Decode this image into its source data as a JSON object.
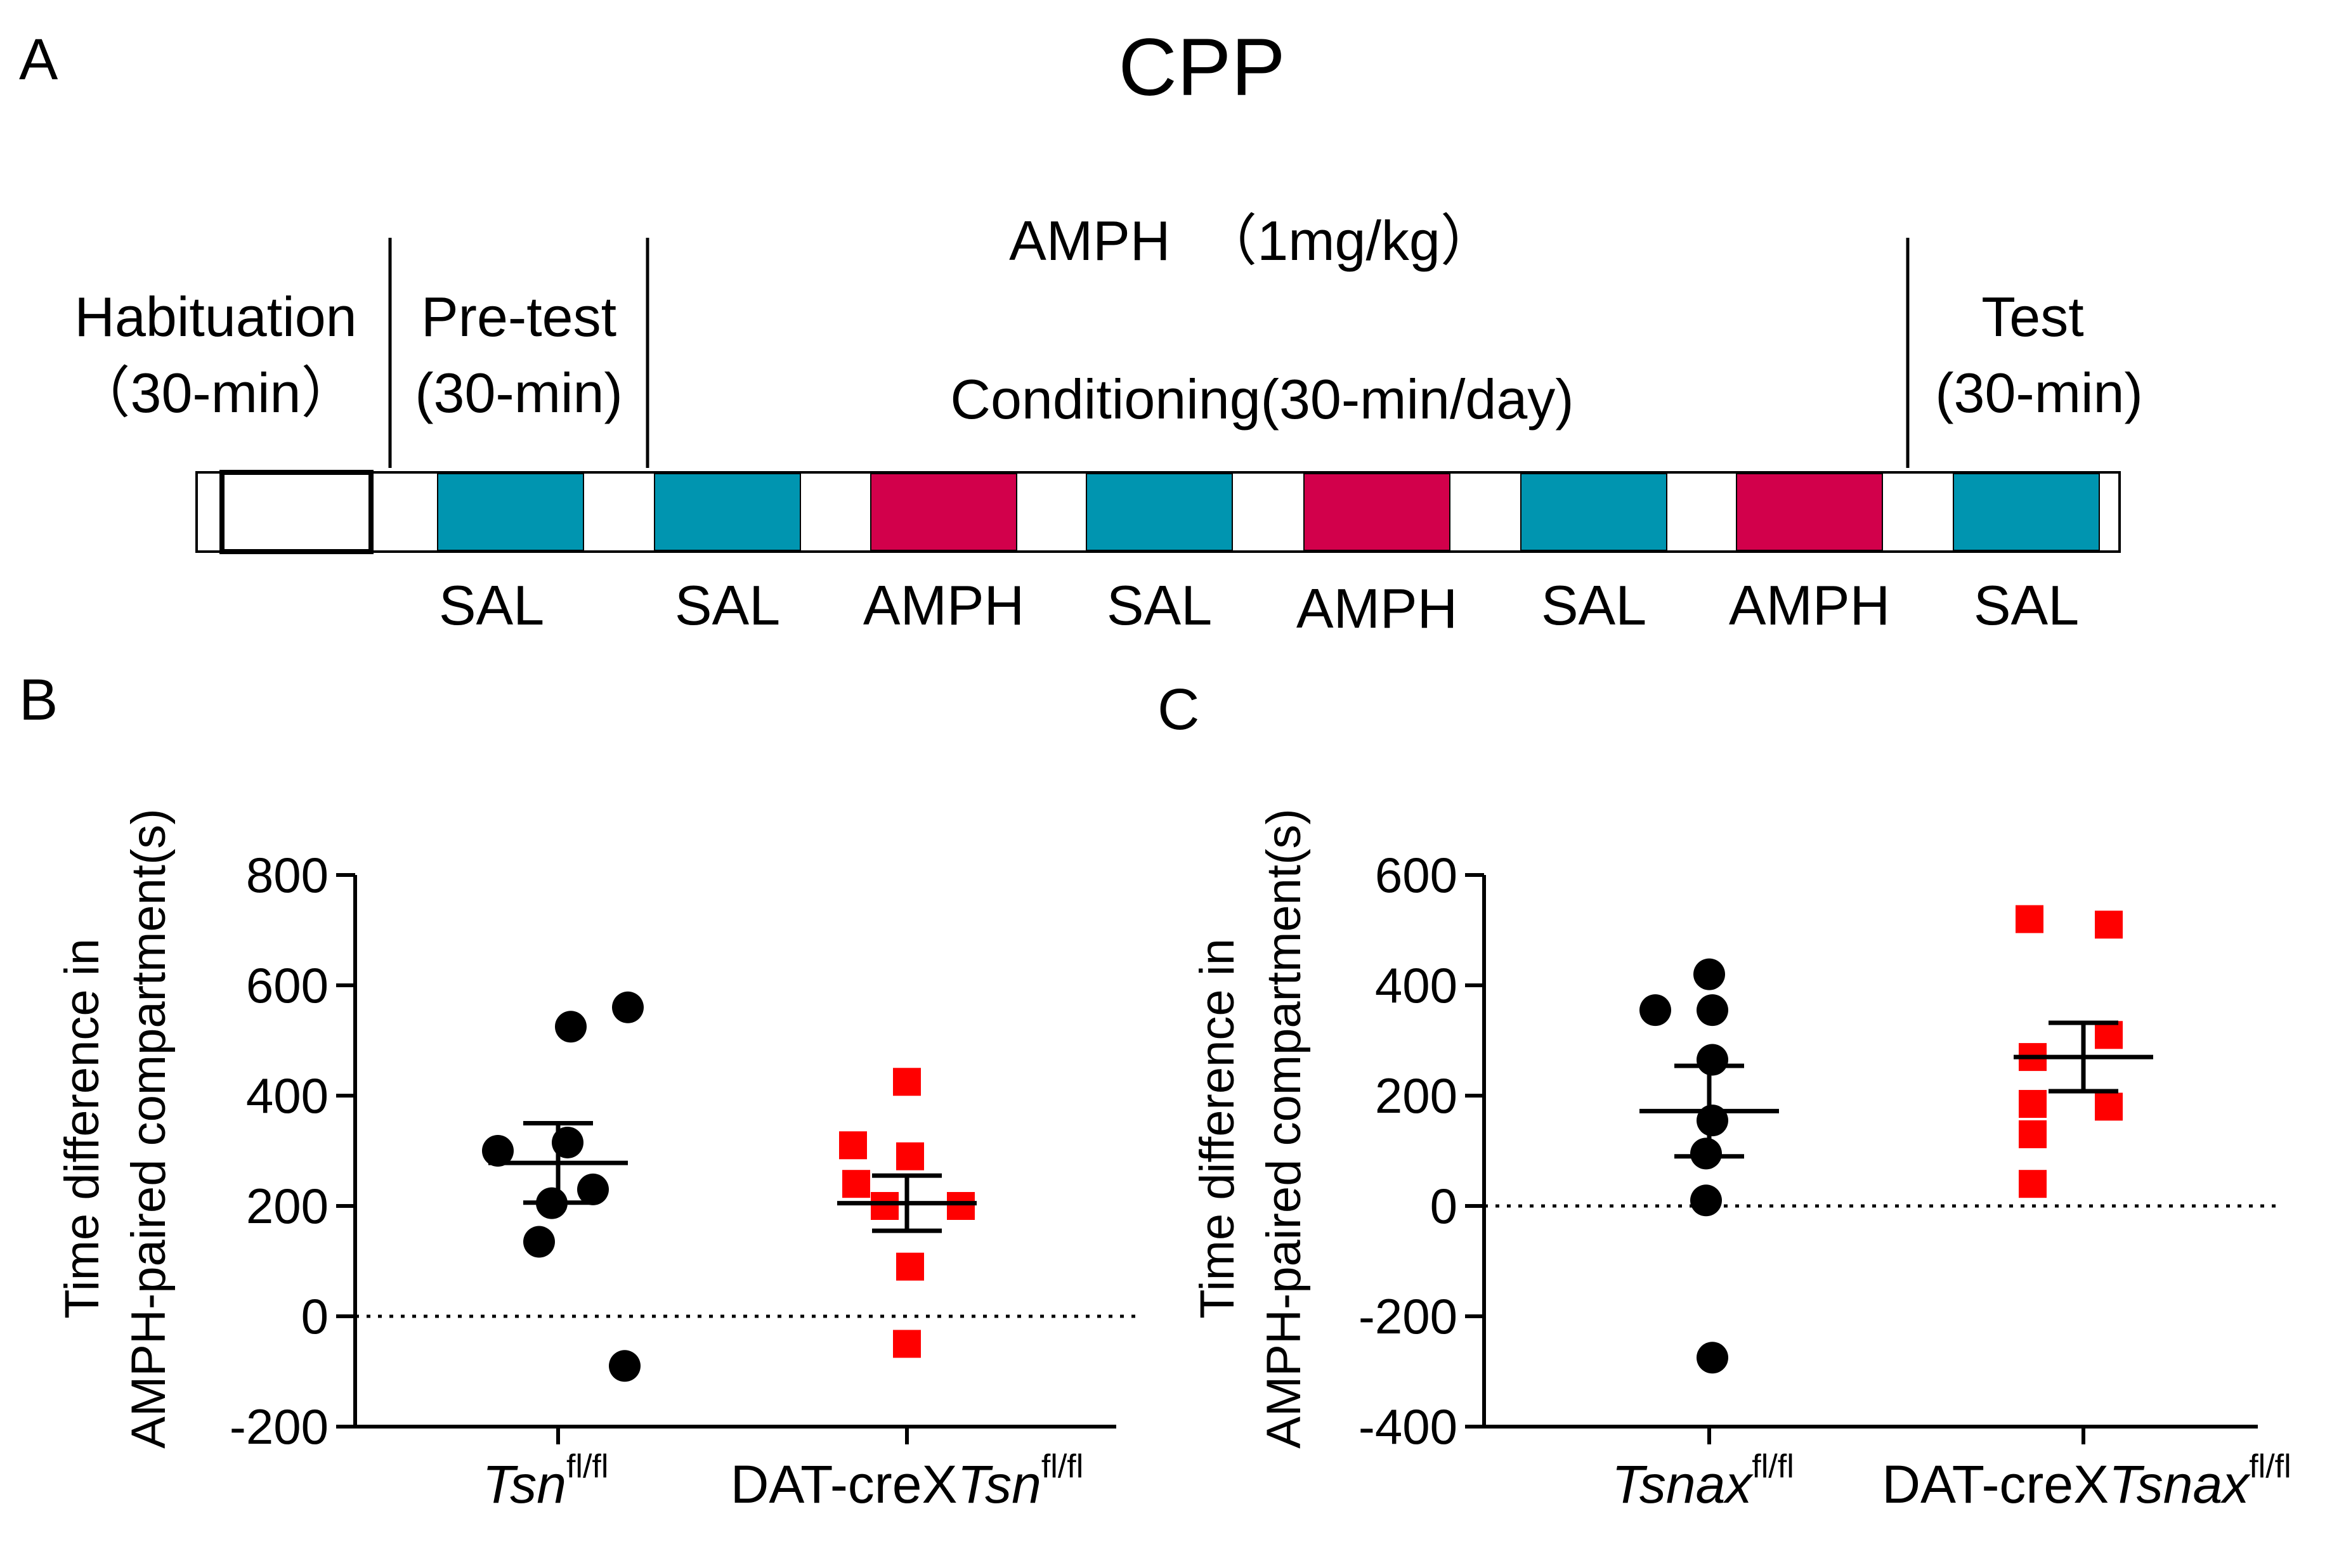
{
  "panel_a": {
    "letter": "A",
    "title": "CPP",
    "amph_header": "AMPH  （1mg/kg）",
    "phases": [
      {
        "line1": "Habituation",
        "line2": "（30-min）"
      },
      {
        "line1": "Pre-test",
        "line2": "(30-min)"
      },
      {
        "line1": "Conditioning(30-min/day)",
        "line2": ""
      },
      {
        "line1": "Test",
        "line2": "(30-min)"
      }
    ],
    "blocks": [
      "SAL",
      "SAL",
      "AMPH",
      "SAL",
      "AMPH",
      "SAL",
      "AMPH",
      "SAL"
    ],
    "colors": {
      "SAL": "#0095B0",
      "AMPH": "#D2004B"
    }
  },
  "chart_data": [
    {
      "type": "scatter",
      "panel": "B",
      "ylabel_line1": "Time difference in",
      "ylabel_line2": "AMPH-paired compartment(s)",
      "ylim": [
        -200,
        800
      ],
      "yticks": [
        "-200",
        "0",
        "200",
        "400",
        "600",
        "800"
      ],
      "ytick_values": [
        -200,
        0,
        200,
        400,
        600,
        800
      ],
      "groups": [
        {
          "name": "Tsn",
          "prefix": "",
          "italic": "Tsn",
          "sup": "fl/fl",
          "marker": "circle",
          "color": "#000000",
          "values": [
            560,
            525,
            315,
            300,
            230,
            205,
            135,
            -90
          ],
          "mean": 278,
          "sem": 72
        },
        {
          "name": "DAT-creXTsn",
          "prefix": "DAT-creX",
          "italic": "Tsn",
          "sup": "fl/fl",
          "marker": "square",
          "color": "#FF0000",
          "values": [
            425,
            310,
            290,
            240,
            200,
            200,
            90,
            -50
          ],
          "mean": 205,
          "sem": 50
        }
      ]
    },
    {
      "type": "scatter",
      "panel": "C",
      "ylabel_line1": "Time difference in",
      "ylabel_line2": "AMPH-paired compartment(s)",
      "ylim": [
        -400,
        600
      ],
      "yticks": [
        "-400",
        "-200",
        "0",
        "200",
        "400",
        "600"
      ],
      "ytick_values": [
        -400,
        -200,
        0,
        200,
        400,
        600
      ],
      "groups": [
        {
          "name": "Tsnax",
          "prefix": "",
          "italic": "Tsnax",
          "sup": "fl/fl",
          "marker": "circle",
          "color": "#000000",
          "values": [
            420,
            355,
            355,
            265,
            155,
            95,
            10,
            -275
          ],
          "mean": 172,
          "sem": 82
        },
        {
          "name": "DAT-creXTsnax",
          "prefix": "DAT-creX",
          "italic": "Tsnax",
          "sup": "fl/fl",
          "marker": "square",
          "color": "#FF0000",
          "values": [
            520,
            510,
            310,
            270,
            185,
            180,
            130,
            40
          ],
          "mean": 270,
          "sem": 62
        }
      ]
    }
  ]
}
